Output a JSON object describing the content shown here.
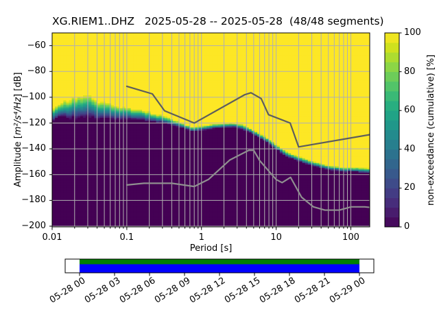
{
  "figure": {
    "title": "XG.RIEM1..DHZ   2025-05-28 -- 2025-05-28  (48/48 segments)",
    "station_id": "XG.RIEM1..DHZ",
    "date_range": "2025-05-28 -- 2025-05-28",
    "segments_used": 48,
    "segments_total": 48
  },
  "chart_data": {
    "type": "heatmap",
    "title": "XG.RIEM1..DHZ   2025-05-28 -- 2025-05-28  (48/48 segments)",
    "xlabel": "Period [s]",
    "ylabel": "Amplitude [m²/s⁴/Hz] [dB]",
    "ylabel_parts": {
      "prefix": "Amplitude [",
      "math": "m²/s⁴/Hz",
      "suffix": "] [dB]"
    },
    "colorbar_label": "non-exceedance (cumulative) [%]",
    "grid": true,
    "x_axis": {
      "scale": "log",
      "min": 0.01,
      "max": 179,
      "ticks": [
        0.01,
        0.1,
        1,
        10,
        100
      ],
      "tick_labels": [
        "0.01",
        "0.1",
        "1",
        "10",
        "100"
      ]
    },
    "y_axis": {
      "min": -200.5,
      "max": -50.1,
      "ticks": [
        -60,
        -80,
        -100,
        -120,
        -140,
        -160,
        -180,
        -200
      ],
      "tick_labels": [
        "−60",
        "−80",
        "−100",
        "−120",
        "−140",
        "−160",
        "−180",
        "−200"
      ]
    },
    "colorbar": {
      "min": 0,
      "max": 100,
      "ticks": [
        0,
        20,
        40,
        60,
        80,
        100
      ],
      "tick_labels": [
        "0",
        "20",
        "40",
        "60",
        "80",
        "100"
      ],
      "n_steps": 20,
      "colormap": "viridis"
    },
    "psd_distribution": {
      "description": "cumulative non-exceedance PPSD: per period, median dB level and dB spread up to 100% / down to 0%",
      "db_bin_width": 1.25,
      "period_step_octaves": 0.125,
      "control_points": [
        [
          0.01,
          -113.0,
          5.0,
          4.5
        ],
        [
          0.014,
          -110.0,
          7.0,
          5.5
        ],
        [
          0.02,
          -107.5,
          8.5,
          8.0
        ],
        [
          0.032,
          -107.5,
          8.5,
          8.0
        ],
        [
          0.045,
          -110.0,
          6.5,
          6.5
        ],
        [
          0.07,
          -111.5,
          5.0,
          5.5
        ],
        [
          0.1,
          -112.5,
          4.5,
          4.5
        ],
        [
          0.15,
          -113.8,
          4.0,
          4.0
        ],
        [
          0.22,
          -115.5,
          3.5,
          3.0
        ],
        [
          0.32,
          -117.5,
          3.0,
          2.5
        ],
        [
          0.5,
          -121.0,
          2.2,
          2.0
        ],
        [
          0.75,
          -124.8,
          1.8,
          1.6
        ],
        [
          1.0,
          -124.0,
          1.8,
          1.6
        ],
        [
          1.4,
          -122.6,
          1.8,
          1.6
        ],
        [
          2.0,
          -121.9,
          1.8,
          1.6
        ],
        [
          2.8,
          -121.6,
          1.8,
          1.6
        ],
        [
          3.5,
          -122.8,
          1.8,
          1.6
        ],
        [
          5.0,
          -127.0,
          2.0,
          1.8
        ],
        [
          7.0,
          -132.0,
          2.0,
          1.8
        ],
        [
          10.0,
          -138.5,
          2.0,
          1.8
        ],
        [
          14.0,
          -144.3,
          2.0,
          1.8
        ],
        [
          22.0,
          -148.7,
          2.0,
          1.8
        ],
        [
          32.0,
          -151.8,
          2.0,
          1.8
        ],
        [
          50.0,
          -154.5,
          1.8,
          1.6
        ],
        [
          80.0,
          -156.0,
          1.8,
          1.6
        ],
        [
          120.0,
          -156.3,
          1.8,
          1.6
        ],
        [
          179.0,
          -157.0,
          2.0,
          1.8
        ]
      ]
    },
    "noise_models": {
      "nhnm": {
        "name": "Peterson New High Noise Model",
        "color": "#5d5d5d",
        "points": [
          [
            0.1,
            -91.5
          ],
          [
            0.22,
            -97.4
          ],
          [
            0.32,
            -110.5
          ],
          [
            0.8,
            -120.0
          ],
          [
            3.8,
            -98.0
          ],
          [
            4.6,
            -96.5
          ],
          [
            6.3,
            -101.0
          ],
          [
            7.9,
            -113.5
          ],
          [
            15.4,
            -120.0
          ],
          [
            20.0,
            -138.5
          ],
          [
            179.0,
            -129.0
          ]
        ]
      },
      "nlnm": {
        "name": "Peterson New Low Noise Model",
        "color": "#909090",
        "points": [
          [
            0.1,
            -168.0
          ],
          [
            0.17,
            -166.7
          ],
          [
            0.4,
            -166.7
          ],
          [
            0.8,
            -169.2
          ],
          [
            1.24,
            -163.7
          ],
          [
            2.4,
            -148.6
          ],
          [
            4.3,
            -141.1
          ],
          [
            5.0,
            -141.1
          ],
          [
            6.0,
            -149.0
          ],
          [
            10.0,
            -163.8
          ],
          [
            12.0,
            -166.2
          ],
          [
            15.6,
            -162.1
          ],
          [
            21.9,
            -177.5
          ],
          [
            31.6,
            -185.0
          ],
          [
            45.0,
            -187.5
          ],
          [
            70.0,
            -187.5
          ],
          [
            101.0,
            -185.0
          ],
          [
            154.0,
            -185.0
          ],
          [
            179.0,
            -185.4
          ]
        ]
      }
    },
    "viridis_stops": [
      [
        0.0,
        "#440154"
      ],
      [
        0.0625,
        "#48186a"
      ],
      [
        0.125,
        "#472d7b"
      ],
      [
        0.1875,
        "#424086"
      ],
      [
        0.25,
        "#3b528b"
      ],
      [
        0.3125,
        "#33638d"
      ],
      [
        0.375,
        "#2c728e"
      ],
      [
        0.4375,
        "#26828e"
      ],
      [
        0.5,
        "#21918c"
      ],
      [
        0.5625,
        "#1fa088"
      ],
      [
        0.625,
        "#28ae80"
      ],
      [
        0.6875,
        "#3fbc73"
      ],
      [
        0.75,
        "#5ec962"
      ],
      [
        0.8125,
        "#84d44b"
      ],
      [
        0.875,
        "#addc30"
      ],
      [
        0.9375,
        "#d8e219"
      ],
      [
        1.0,
        "#fde725"
      ]
    ]
  },
  "timeline": {
    "tick_labels": [
      "05-28 00",
      "05-28 03",
      "05-28 06",
      "05-28 09",
      "05-28 12",
      "05-28 15",
      "05-28 18",
      "05-28 21",
      "05-29 00"
    ],
    "coverage_top_color": "#008000",
    "coverage_bottom_color": "#0000ff",
    "frame_color": "#000000",
    "background_color": "#ffffff"
  },
  "colors": {
    "background": "#ffffff",
    "grid": "#b0b0b0",
    "axes_frame": "#000000",
    "text": "#000000"
  }
}
